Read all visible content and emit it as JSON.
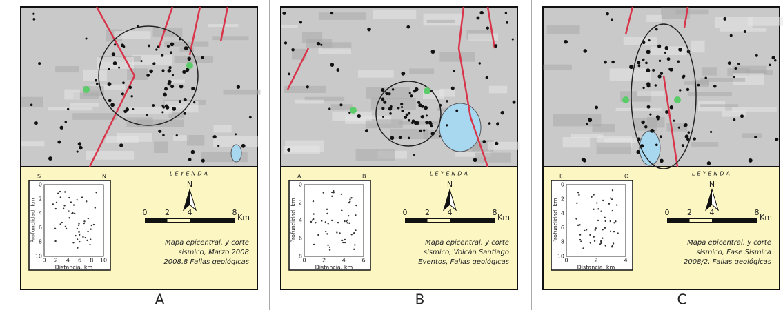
{
  "panels": [
    {
      "label": "A",
      "legend_title": "LEYENDA",
      "north": "N",
      "scale": {
        "ticks": [
          "0",
          "2",
          "4",
          "8"
        ],
        "unit": "Km"
      },
      "caption": [
        "Mapa epicentral, y corte",
        "sísmico, Marzo 2008",
        "2008.8 Fallas geológicas"
      ],
      "inset": {
        "top_left": "S",
        "top_right": "N",
        "ylabel": "Profundidad, km",
        "xlabel": "Distancia, km",
        "xticks": [
          "0",
          "2",
          "4",
          "6",
          "8",
          "10"
        ],
        "yticks": [
          "0",
          "2",
          "4",
          "6",
          "8",
          "10"
        ]
      }
    },
    {
      "label": "B",
      "legend_title": "LEYENDA",
      "north": "N",
      "scale": {
        "ticks": [
          "0",
          "2",
          "4",
          "8"
        ],
        "unit": "Km"
      },
      "caption": [
        "Mapa epicentral, y corte",
        "sísmico, Volcán Santiago",
        "Eventos, Fallas geológicas"
      ],
      "inset": {
        "top_left": "A",
        "top_right": "B",
        "ylabel": "Profundidad, km",
        "xlabel": "Distancia, km",
        "xticks": [
          "0",
          "2",
          "4",
          "6"
        ],
        "yticks": [
          "0",
          "2",
          "4",
          "6",
          "8"
        ]
      }
    },
    {
      "label": "C",
      "legend_title": "LEYENDA",
      "north": "N",
      "scale": {
        "ticks": [
          "0",
          "2",
          "4",
          "8"
        ],
        "unit": "Km"
      },
      "caption": [
        "Mapa epicentral, y corte",
        "sísmico, Fase Sísmica",
        "2008/2. Fallas geológicas"
      ],
      "inset": {
        "top_left": "E",
        "top_right": "O",
        "ylabel": "Profundidad, km",
        "xlabel": "Distancia, km",
        "xticks": [
          "0",
          "2",
          "4"
        ],
        "yticks": [
          "0",
          "2",
          "4",
          "6",
          "8",
          "10"
        ]
      }
    }
  ]
}
